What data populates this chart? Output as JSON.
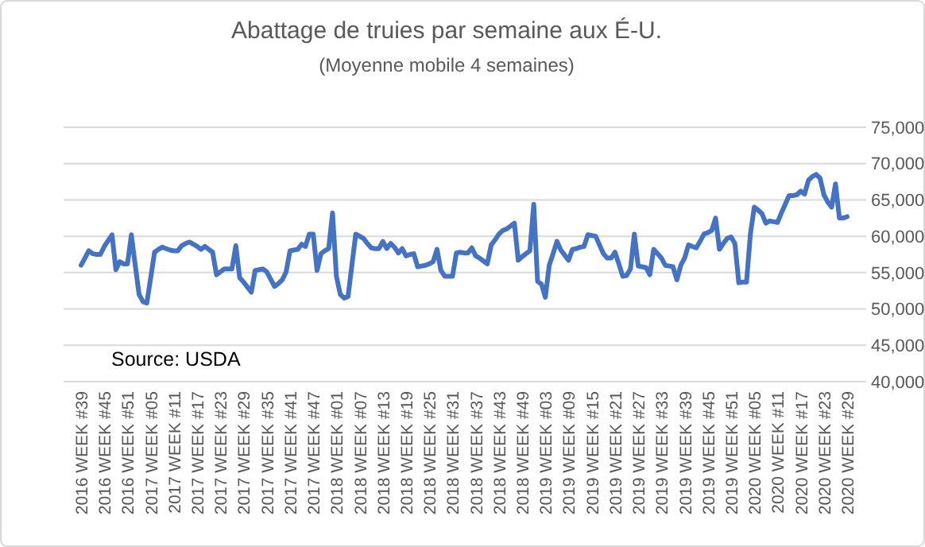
{
  "chart_data": {
    "type": "line",
    "title": "Abattage de truies par semaine aux É-U.",
    "subtitle": "(Moyenne mobile 4 semaines)",
    "annotations": [
      "Source: USDA"
    ],
    "categories": [
      "2016 WEEK #39",
      null,
      null,
      null,
      null,
      null,
      "2016 WEEK #45",
      null,
      null,
      null,
      null,
      null,
      "2016 WEEK #51",
      null,
      null,
      null,
      null,
      null,
      "2017 WEEK #05",
      null,
      null,
      null,
      null,
      null,
      "2017 WEEK #11",
      null,
      null,
      null,
      null,
      null,
      "2017 WEEK #17",
      null,
      null,
      null,
      null,
      null,
      "2017 WEEK #23",
      null,
      null,
      null,
      null,
      null,
      "2017 WEEK #29",
      null,
      null,
      null,
      null,
      null,
      "2017 WEEK #35",
      null,
      null,
      null,
      null,
      null,
      "2017 WEEK #41",
      null,
      null,
      null,
      null,
      null,
      "2017 WEEK #47",
      null,
      null,
      null,
      null,
      null,
      "2018 WEEK #01",
      null,
      null,
      null,
      null,
      null,
      "2018 WEEK #07",
      null,
      null,
      null,
      null,
      null,
      "2018 WEEK #13",
      null,
      null,
      null,
      null,
      null,
      "2018 WEEK #19",
      null,
      null,
      null,
      null,
      null,
      "2018 WEEK #25",
      null,
      null,
      null,
      null,
      null,
      "2018 WEEK #31",
      null,
      null,
      null,
      null,
      null,
      "2018 WEEK #37",
      null,
      null,
      null,
      null,
      null,
      "2018 WEEK #43",
      null,
      null,
      null,
      null,
      null,
      "2018 WEEK #49",
      null,
      null,
      null,
      null,
      null,
      "2019 WEEK #03",
      null,
      null,
      null,
      null,
      null,
      "2019 WEEK #09",
      null,
      null,
      null,
      null,
      null,
      "2019 WEEK #15",
      null,
      null,
      null,
      null,
      null,
      "2019 WEEK #21",
      null,
      null,
      null,
      null,
      null,
      "2019 WEEK #27",
      null,
      null,
      null,
      null,
      null,
      "2019 WEEK #33",
      null,
      null,
      null,
      null,
      null,
      "2019 WEEK #39",
      null,
      null,
      null,
      null,
      null,
      "2019 WEEK #45",
      null,
      null,
      null,
      null,
      null,
      "2019 WEEK #51",
      null,
      null,
      null,
      null,
      null,
      "2020 WEEK #05",
      null,
      null,
      null,
      null,
      null,
      "2020 WEEK #11",
      null,
      null,
      null,
      null,
      null,
      "2020 WEEK #17",
      null,
      null,
      null,
      null,
      null,
      "2020 WEEK #23",
      null,
      null,
      null,
      null,
      null,
      "2020 WEEK #29"
    ],
    "series": [
      {
        "color": "#4472c4",
        "values": [
          56000,
          57000,
          58000,
          57600,
          57500,
          57500,
          58600,
          59400,
          60200,
          55400,
          56500,
          56200,
          56200,
          60200,
          56000,
          52000,
          51000,
          50800,
          54300,
          57800,
          58200,
          58500,
          58300,
          58100,
          58000,
          58000,
          58700,
          59000,
          59200,
          58900,
          58600,
          58200,
          58600,
          58200,
          57800,
          54700,
          55100,
          55500,
          55500,
          55500,
          58700,
          54300,
          53700,
          53000,
          52300,
          55300,
          55400,
          55500,
          55100,
          54100,
          53100,
          53500,
          54000,
          55100,
          58000,
          58100,
          58200,
          58900,
          58600,
          60300,
          60300,
          55300,
          57600,
          58000,
          58300,
          63200,
          54500,
          52000,
          51500,
          51700,
          56000,
          60300,
          60000,
          59700,
          59000,
          58400,
          58300,
          58300,
          59300,
          58300,
          59000,
          58500,
          57700,
          58300,
          57300,
          57500,
          57600,
          55800,
          55900,
          56000,
          56200,
          56500,
          58200,
          55300,
          54500,
          54500,
          54500,
          57700,
          57800,
          57700,
          57700,
          58400,
          57300,
          57000,
          56600,
          56200,
          58800,
          59500,
          60300,
          60800,
          61000,
          61400,
          61800,
          56700,
          57200,
          57600,
          58000,
          64400,
          53800,
          53400,
          51600,
          56000,
          57600,
          59300,
          58100,
          57400,
          56700,
          58200,
          58300,
          58500,
          58600,
          60200,
          60100,
          60000,
          58800,
          57600,
          57000,
          57000,
          57800,
          56200,
          54500,
          54600,
          55500,
          60300,
          55900,
          55800,
          55700,
          54700,
          58200,
          57600,
          57000,
          56000,
          55900,
          55800,
          54000,
          56000,
          57000,
          58800,
          58600,
          58400,
          59300,
          60300,
          60500,
          60800,
          62500,
          58200,
          59000,
          59700,
          59900,
          59000,
          53600,
          53700,
          53700,
          60300,
          64000,
          63600,
          63100,
          61800,
          62100,
          62000,
          61900,
          63200,
          64400,
          65600,
          65600,
          65700,
          66200,
          65800,
          67700,
          68200,
          68500,
          68000,
          65700,
          64700,
          64000,
          67200,
          62500,
          62500,
          62700
        ]
      }
    ],
    "ylim": [
      40000,
      75000
    ],
    "yticks": [
      {
        "value": 40000,
        "label": "40,000"
      },
      {
        "value": 45000,
        "label": "45,000"
      },
      {
        "value": 50000,
        "label": "50,000"
      },
      {
        "value": 55000,
        "label": "55,000"
      },
      {
        "value": 60000,
        "label": "60,000"
      },
      {
        "value": 65000,
        "label": "65,000"
      },
      {
        "value": 70000,
        "label": "70,000"
      },
      {
        "value": 75000,
        "label": "75,000"
      }
    ],
    "grid": "y",
    "marker": "none",
    "line_style": "solid"
  }
}
